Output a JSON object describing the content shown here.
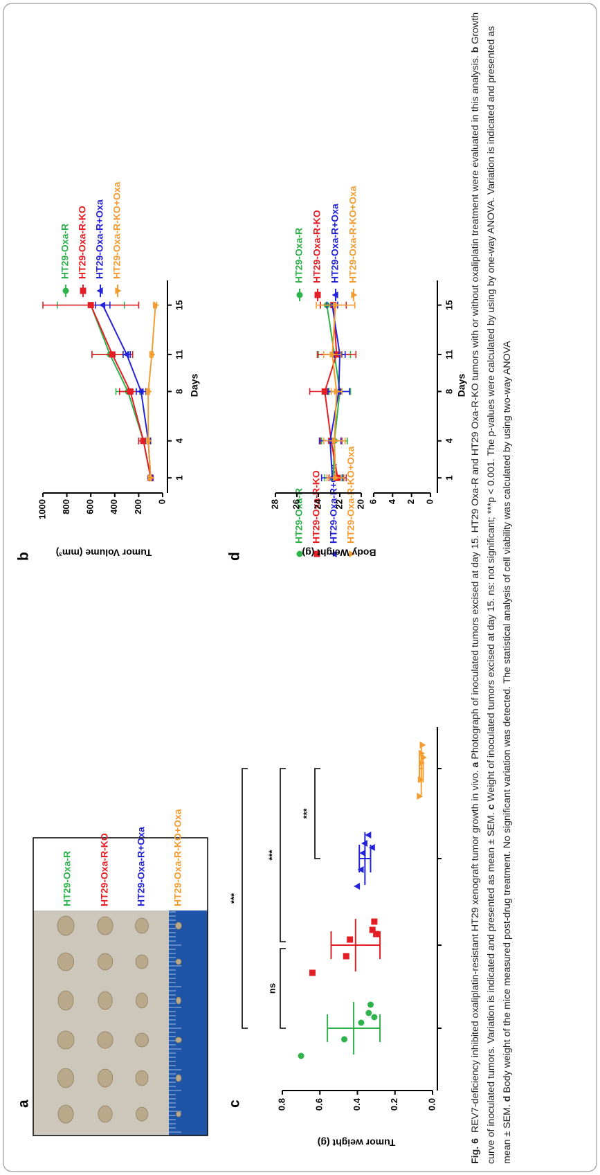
{
  "photo": {
    "panel": "a",
    "labels": [
      {
        "text": "HT29-Oxa-R",
        "color": "#2db34a"
      },
      {
        "text": "HT29-Oxa-R-KO",
        "color": "#e31e24"
      },
      {
        "text": "HT29-Oxa-R+Oxa",
        "color": "#2323d8"
      },
      {
        "text": "HT29-Oxa-R-KO+Oxa",
        "color": "#f39c32"
      }
    ]
  },
  "chart_data": [
    {
      "panel": "b",
      "type": "line",
      "ylabel": "Tumor Volume (mm³)",
      "xlabel": "Days",
      "x": [
        1,
        4,
        8,
        11,
        15
      ],
      "xlim": [
        0,
        17
      ],
      "xticks": [
        1,
        4,
        8,
        11,
        15
      ],
      "ylim": [
        0,
        1000
      ],
      "yticks": [
        0,
        200,
        400,
        600,
        800,
        1000
      ],
      "series": [
        {
          "name": "HT29-Oxa-R",
          "color": "#2db34a",
          "marker": "circle",
          "values": [
            100,
            160,
            290,
            440,
            600
          ],
          "errors": [
            10,
            40,
            100,
            150,
            280
          ]
        },
        {
          "name": "HT29-Oxa-R-KO",
          "color": "#e31e24",
          "marker": "square",
          "values": [
            100,
            160,
            270,
            420,
            600
          ],
          "errors": [
            10,
            40,
            90,
            170,
            400
          ]
        },
        {
          "name": "HT29-Oxa-R+Oxa",
          "color": "#2323d8",
          "marker": "triangle",
          "values": [
            100,
            120,
            180,
            300,
            500
          ],
          "errors": [
            10,
            20,
            40,
            30,
            60
          ]
        },
        {
          "name": "HT29-Oxa-R-KO+Oxa",
          "color": "#f39c32",
          "marker": "triangle-down",
          "values": [
            100,
            120,
            120,
            90,
            60
          ],
          "errors": [
            5,
            10,
            10,
            10,
            10
          ]
        }
      ]
    },
    {
      "panel": "c",
      "type": "scatter",
      "ylabel": "Tumor weight (g)",
      "ylim": [
        0,
        0.8
      ],
      "yticks": [
        {
          "value": 0,
          "label": "0.0"
        },
        0.2,
        0.4,
        0.6,
        0.8
      ],
      "series": [
        {
          "name": "HT29-Oxa-R",
          "color": "#2db34a",
          "marker": "circle",
          "values": [
            0.7,
            0.47,
            0.38,
            0.34,
            0.33,
            0.31
          ],
          "mean": 0.42,
          "error": 0.14
        },
        {
          "name": "HT29-Oxa-R-KO",
          "color": "#e31e24",
          "marker": "square",
          "values": [
            0.64,
            0.46,
            0.44,
            0.32,
            0.31,
            0.3
          ],
          "mean": 0.41,
          "error": 0.13
        },
        {
          "name": "HT29-Oxa-R+Oxa",
          "color": "#2323d8",
          "marker": "triangle",
          "values": [
            0.4,
            0.38,
            0.37,
            0.36,
            0.34,
            0.32
          ],
          "mean": 0.36,
          "error": 0.03
        },
        {
          "name": "HT29-Oxa-R-KO+Oxa",
          "color": "#f39c32",
          "marker": "triangle-down",
          "values": [
            0.07,
            0.065,
            0.06,
            0.06,
            0.055,
            0.05
          ],
          "mean": 0.06,
          "error": 0.01
        }
      ],
      "comparisons": [
        "ns",
        "***",
        "***",
        "***"
      ]
    },
    {
      "panel": "d",
      "type": "line",
      "ylabel": "Body Weight (g)",
      "xlabel": "Days",
      "x": [
        1,
        4,
        8,
        11,
        15
      ],
      "xlim": [
        0,
        17
      ],
      "xticks": [
        1,
        4,
        8,
        11,
        15
      ],
      "ylim": [
        0,
        28
      ],
      "ybreak": [
        6,
        20
      ],
      "yticks": [
        0,
        2,
        4,
        6,
        20,
        22,
        24,
        26,
        28
      ],
      "series": [
        {
          "name": "HT29-Oxa-R",
          "color": "#2db34a",
          "marker": "circle",
          "values": [
            22.6,
            22.5,
            22,
            22.5,
            23.2
          ],
          "errors": [
            0.8,
            1.2,
            1,
            1.5,
            0.6
          ]
        },
        {
          "name": "HT29-Oxa-R-KO",
          "color": "#e31e24",
          "marker": "square",
          "values": [
            22.2,
            22.8,
            23.4,
            22.3,
            22.6
          ],
          "errors": [
            0.8,
            1,
            1.4,
            1.8,
            1.2
          ]
        },
        {
          "name": "HT29-Oxa-R+Oxa",
          "color": "#2323d8",
          "marker": "triangle",
          "values": [
            22.7,
            22.9,
            22.1,
            22,
            22.7
          ],
          "errors": [
            1,
            1,
            1,
            0.5,
            0.5
          ]
        },
        {
          "name": "HT29-Oxa-R-KO+Oxa",
          "color": "#f39c32",
          "marker": "triangle-down",
          "values": [
            22.4,
            22.5,
            22.3,
            22.7,
            22.4
          ],
          "errors": [
            0.8,
            1,
            0.5,
            0.8,
            1.8
          ]
        }
      ]
    }
  ],
  "caption": [
    {
      "text": "Fig. 6",
      "bold": true
    },
    {
      "text": "  REV7-deficiency inhibited oxaliplatin-resistant HT29 xenograft tumor growth in vivo. ",
      "bold": false
    },
    {
      "text": "a",
      "bold": true
    },
    {
      "text": " Photograph of inoculated tumors excised at day 15. HT29 Oxa-R and HT29 Oxa-R-KO tumors with or without oxaliplatin treatment were evaluated in this analysis. ",
      "bold": false
    },
    {
      "text": "b",
      "bold": true
    },
    {
      "text": " Growth curve of inoculated tumors. Variation is indicated and presented as mean ± SEM. ",
      "bold": false
    },
    {
      "text": "c",
      "bold": true
    },
    {
      "text": " Weight of inoculated tumors excised at day 15. ns: not significant; ***p < 0.001. The p-values were calculated by using by one-way ANOVA. Variation is indicated and presented as mean ± SEM. ",
      "bold": false
    },
    {
      "text": "d",
      "bold": true
    },
    {
      "text": " Body weight of the mice measured post-drug treatment. No significant variation was detected. The statistical analysis of cell viability was calculated by using two-way ANOVA",
      "bold": false
    }
  ]
}
